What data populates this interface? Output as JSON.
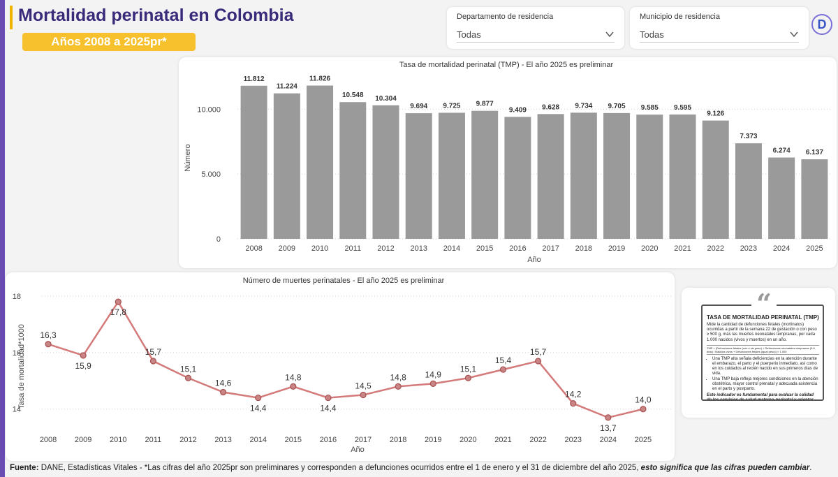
{
  "header": {
    "title": "Mortalidad perinatal en Colombia",
    "badge": "Años 2008 a 2025pr*"
  },
  "filters": [
    {
      "label": "Departamento de residencia",
      "value": "Todas"
    },
    {
      "label": "Municipio de residencia",
      "value": "Todas"
    }
  ],
  "logo": {
    "letter": "D",
    "icon": "brand-logo-icon"
  },
  "colors": {
    "bar": "#9a9a9a",
    "line": "#d47a7a",
    "point_fill": "#c98585",
    "point_stroke": "#a85050",
    "title": "#3a2a7a",
    "badge": "#f7c12e"
  },
  "chart_data": [
    {
      "type": "bar",
      "title": "Tasa de mortalidad perinatal (TMP) - El año 2025 es preliminar",
      "xlabel": "Año",
      "ylabel": "Número",
      "categories": [
        "2008",
        "2009",
        "2010",
        "2011",
        "2012",
        "2013",
        "2014",
        "2015",
        "2016",
        "2017",
        "2018",
        "2019",
        "2020",
        "2021",
        "2022",
        "2023",
        "2024",
        "2025"
      ],
      "values": [
        11812,
        11224,
        11826,
        10548,
        10304,
        9694,
        9725,
        9877,
        9409,
        9628,
        9734,
        9705,
        9585,
        9595,
        9126,
        7373,
        6274,
        6137
      ],
      "value_labels": [
        "11.812",
        "11.224",
        "11.826",
        "10.548",
        "10.304",
        "9.694",
        "9.725",
        "9.877",
        "9.409",
        "9.628",
        "9.734",
        "9.705",
        "9.585",
        "9.595",
        "9.126",
        "7.373",
        "6.274",
        "6.137"
      ],
      "yticks": [
        0,
        5000,
        10000
      ],
      "ytick_labels": [
        "0",
        "5.000",
        "10.000"
      ],
      "ylim": [
        0,
        12500
      ],
      "grid": true
    },
    {
      "type": "line",
      "title": "Número de muertes perinatales - El año 2025 es preliminar",
      "xlabel": "Año",
      "ylabel": "Tasa de mortalidad*1000",
      "categories": [
        "2008",
        "2009",
        "2010",
        "2011",
        "2012",
        "2013",
        "2014",
        "2015",
        "2016",
        "2017",
        "2018",
        "2019",
        "2020",
        "2021",
        "2022",
        "2023",
        "2024",
        "2025"
      ],
      "values": [
        16.3,
        15.9,
        17.8,
        15.7,
        15.1,
        14.6,
        14.4,
        14.8,
        14.4,
        14.5,
        14.8,
        14.9,
        15.1,
        15.4,
        15.7,
        14.2,
        13.7,
        14.0
      ],
      "value_labels": [
        "16,3",
        "15,9",
        "17,8",
        "15,7",
        "15,1",
        "14,6",
        "14,4",
        "14,8",
        "14,4",
        "14,5",
        "14,8",
        "14,9",
        "15,1",
        "15,4",
        "15,7",
        "14,2",
        "13,7",
        "14,0"
      ],
      "label_position": [
        "above",
        "below",
        "below",
        "above",
        "above",
        "above",
        "below",
        "above",
        "below",
        "above",
        "above",
        "above",
        "above",
        "above",
        "above",
        "above",
        "below",
        "above"
      ],
      "yticks": [
        14,
        16,
        18
      ],
      "ytick_labels": [
        "14",
        "16",
        "18"
      ],
      "ylim": [
        13.4,
        18.1
      ],
      "grid": true
    }
  ],
  "info": {
    "title": "TASA DE MORTALIDAD PERINATAL (TMP)",
    "description": "Mide la cantidad de defunciones fetales (mortinatos) ocurridas a partir de la semana 22 de gestación o con peso ≥ 500 g, más las muertes neonatales tempranas, por cada 1.000 nacidos (vivos y muertos) en un año.",
    "formula": "TMP = (Defunciones fetales (con o sin peso) + Defunciones neonatales tempranas (0-6 días) / Nacidos vivos + Defunciones fetales (igual peso)) × 1.000",
    "bullets": [
      "Una TMP alta señala deficiencias en la atención durante el embarazo, el parto y el puerperio inmediato, así como en los cuidados al recién nacido en sus primeros días de vida.",
      "Una TMP baja refleja mejores condiciones en la atención obstétrica, mayor control prenatal y adecuada asistencia en el parto y postparto."
    ],
    "closing": "Este indicador es fundamental para evaluar la calidad de los servicios de salud materno-perinatal y orientar intervenciones en salud pública."
  },
  "footnote": {
    "source_label": "Fuente:",
    "text": " DANE, Estadísticas Vitales - *Las cifras del año 2025pr son preliminares y corresponden a defunciones ocurridos entre el 1 de enero y el 31 de diciembre del año 2025, ",
    "emphasis": "esto significa que las cifras pueden cambiar",
    "end": "."
  }
}
